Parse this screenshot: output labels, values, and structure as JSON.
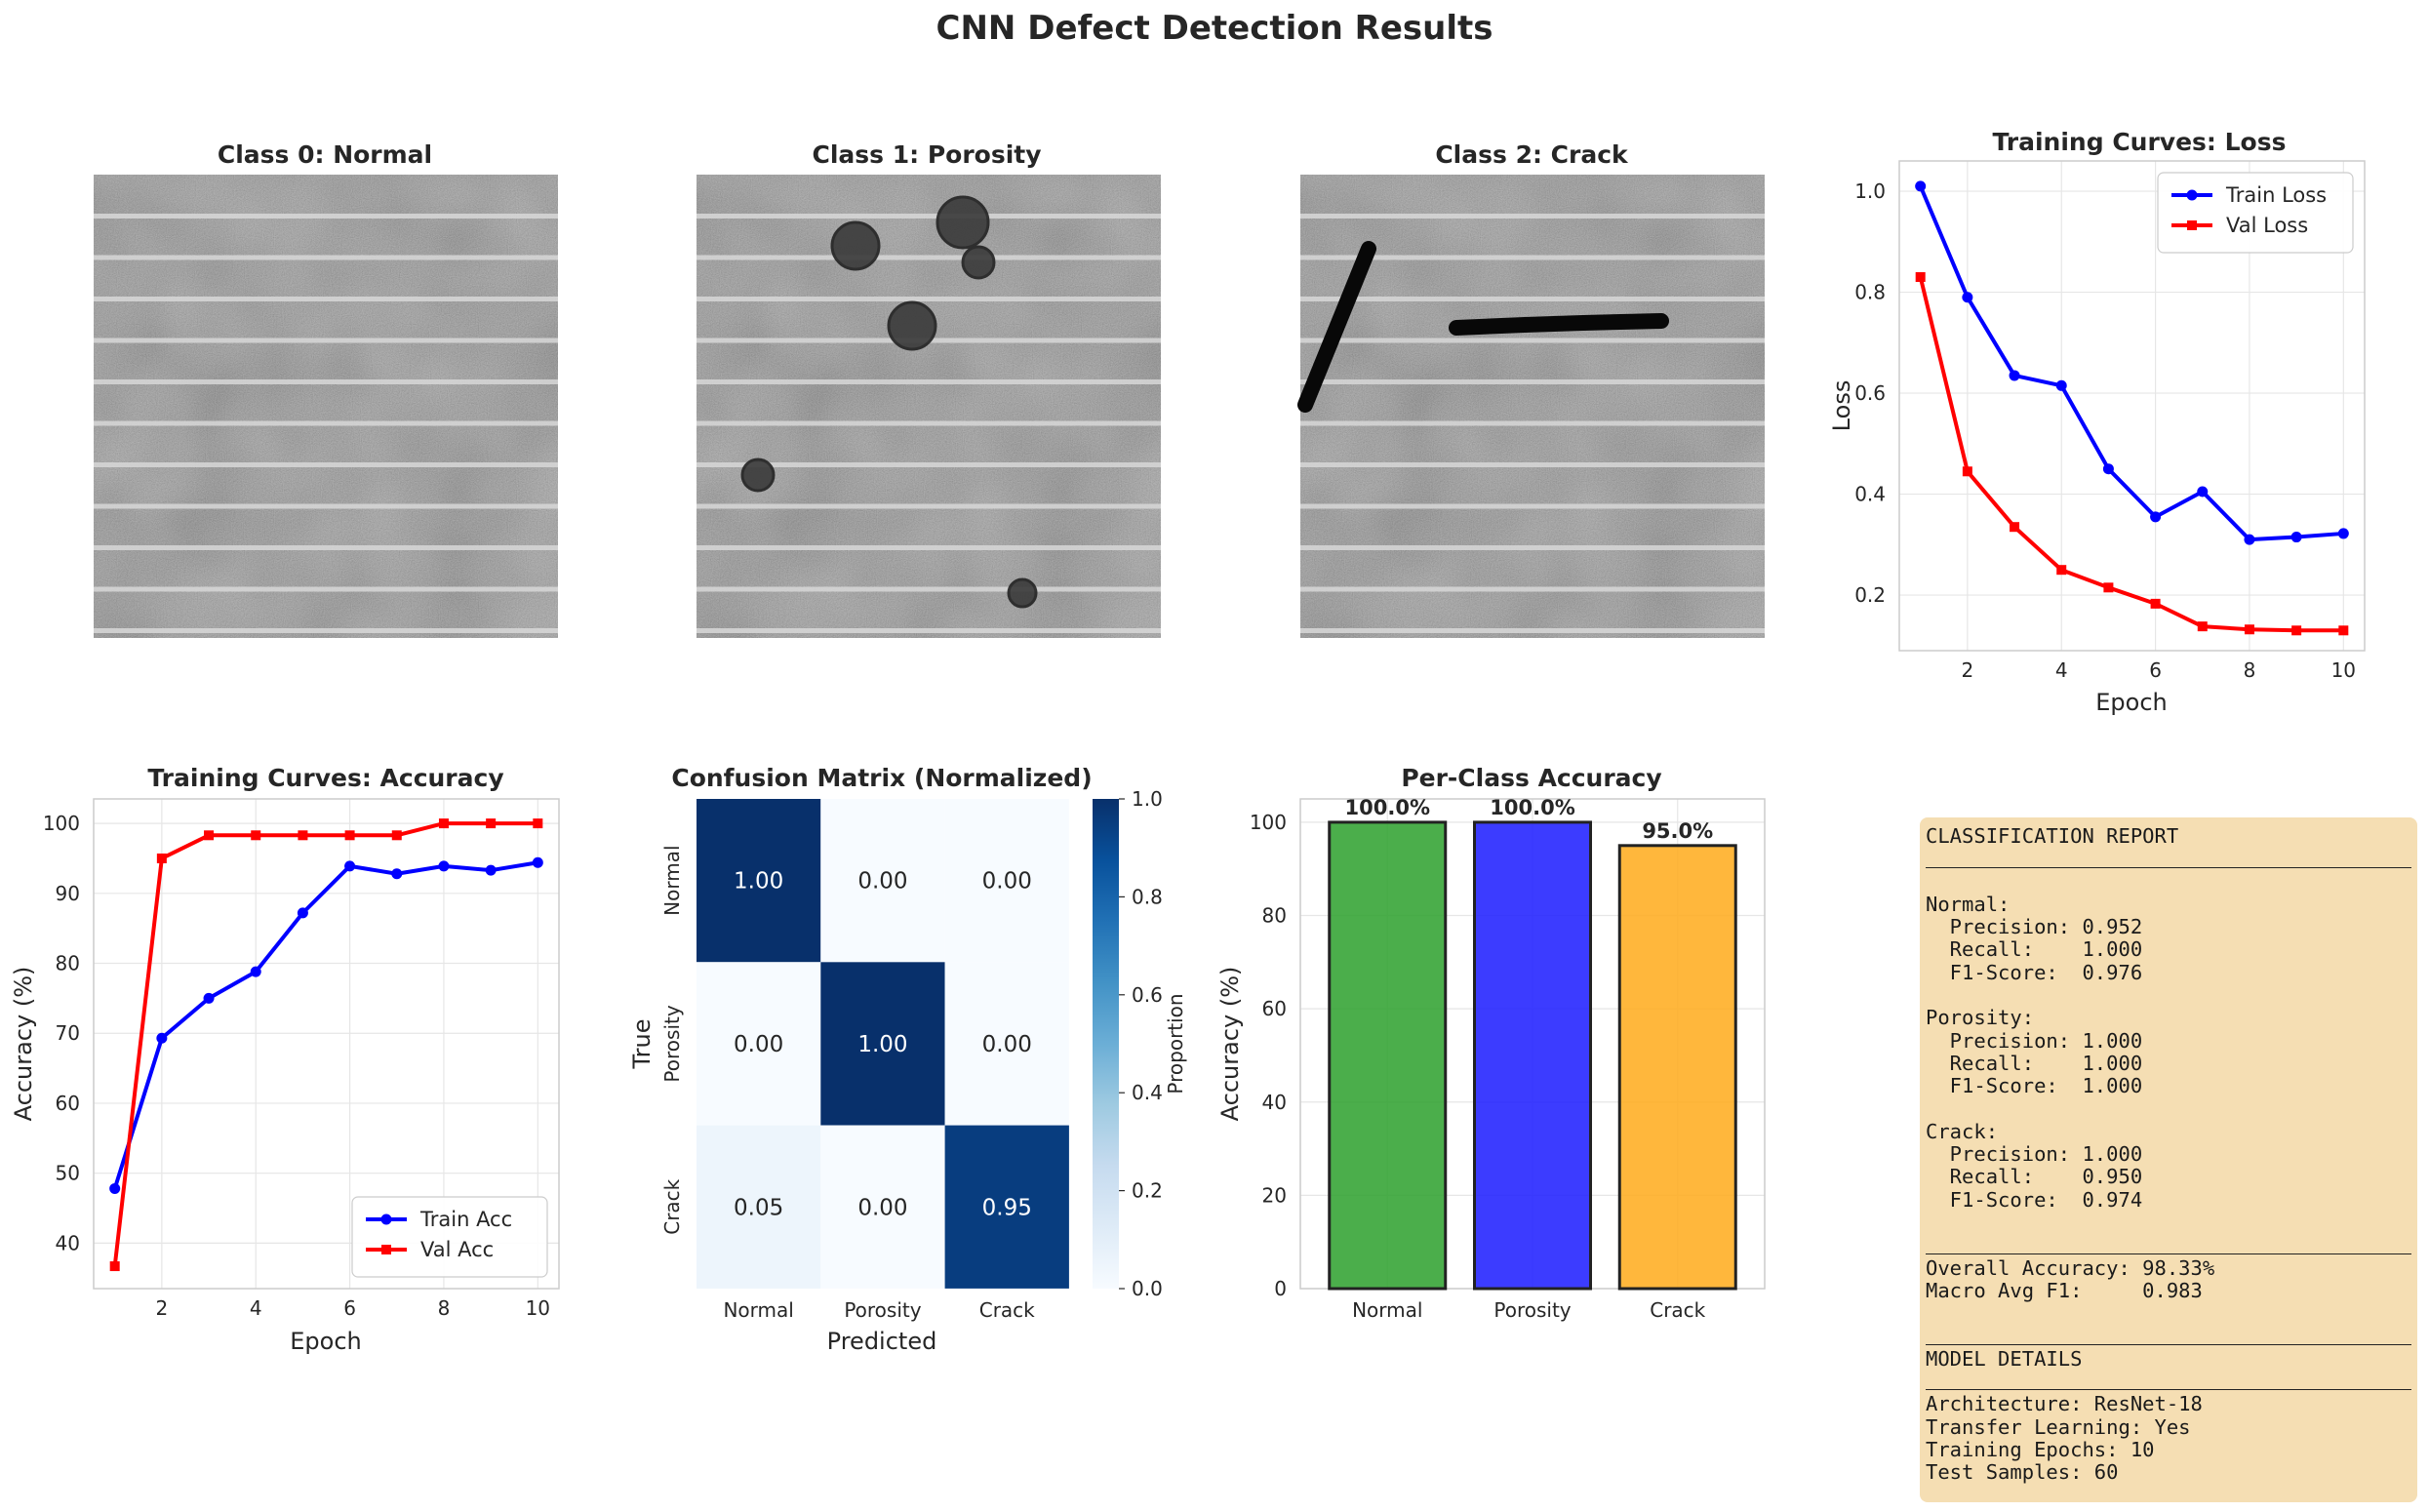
{
  "figure_title": "CNN Defect Detection Results",
  "sample_images": [
    {
      "title": "Class 0: Normal"
    },
    {
      "title": "Class 1: Porosity"
    },
    {
      "title": "Class 2: Crack"
    }
  ],
  "chart_data": [
    {
      "type": "line",
      "title": "Training Curves: Loss",
      "xlabel": "Epoch",
      "ylabel": "Loss",
      "x": [
        1,
        2,
        3,
        4,
        5,
        6,
        7,
        8,
        9,
        10
      ],
      "xticks": [
        2,
        4,
        6,
        8,
        10
      ],
      "yticks": [
        0.2,
        0.4,
        0.6,
        0.8,
        1.0
      ],
      "ylim": [
        0.09,
        1.06
      ],
      "grid": true,
      "legend": "top-right",
      "series": [
        {
          "name": "Train Loss",
          "color": "#0000ff",
          "marker": "circle",
          "values": [
            1.01,
            0.79,
            0.635,
            0.615,
            0.45,
            0.355,
            0.405,
            0.31,
            0.315,
            0.322
          ]
        },
        {
          "name": "Val Loss",
          "color": "#ff0000",
          "marker": "square",
          "values": [
            0.83,
            0.445,
            0.335,
            0.25,
            0.215,
            0.183,
            0.138,
            0.132,
            0.13,
            0.13
          ]
        }
      ]
    },
    {
      "type": "line",
      "title": "Training Curves: Accuracy",
      "xlabel": "Epoch",
      "ylabel": "Accuracy (%)",
      "x": [
        1,
        2,
        3,
        4,
        5,
        6,
        7,
        8,
        9,
        10
      ],
      "xticks": [
        2,
        4,
        6,
        8,
        10
      ],
      "yticks": [
        40,
        50,
        60,
        70,
        80,
        90,
        100
      ],
      "ylim": [
        33.5,
        103.5
      ],
      "grid": true,
      "legend": "bottom-right",
      "series": [
        {
          "name": "Train Acc",
          "color": "#0000ff",
          "marker": "circle",
          "values": [
            47.8,
            69.3,
            75,
            78.8,
            87.2,
            93.9,
            92.8,
            93.9,
            93.3,
            94.4
          ]
        },
        {
          "name": "Val Acc",
          "color": "#ff0000",
          "marker": "square",
          "values": [
            36.7,
            95,
            98.3,
            98.3,
            98.3,
            98.3,
            98.3,
            100,
            100,
            100
          ]
        }
      ]
    },
    {
      "type": "heatmap",
      "title": "Confusion Matrix (Normalized)",
      "xlabel": "Predicted",
      "ylabel": "True",
      "x_categories": [
        "Normal",
        "Porosity",
        "Crack"
      ],
      "y_categories": [
        "Normal",
        "Porosity",
        "Crack"
      ],
      "values": [
        [
          1.0,
          0.0,
          0.0
        ],
        [
          0.0,
          1.0,
          0.0
        ],
        [
          0.05,
          0.0,
          0.95
        ]
      ],
      "value_labels": [
        [
          "1.00",
          "0.00",
          "0.00"
        ],
        [
          "0.00",
          "1.00",
          "0.00"
        ],
        [
          "0.05",
          "0.00",
          "0.95"
        ]
      ],
      "colorbar_label": "Proportion",
      "colorbar_ticks": [
        0.0,
        0.2,
        0.4,
        0.6,
        0.8,
        1.0
      ],
      "colorbar_tick_labels": [
        "0.0",
        "0.2",
        "0.4",
        "0.6",
        "0.8",
        "1.0"
      ],
      "colormap": "Blues"
    },
    {
      "type": "bar",
      "title": "Per-Class Accuracy",
      "ylabel": "Accuracy (%)",
      "categories": [
        "Normal",
        "Porosity",
        "Crack"
      ],
      "values": [
        100.0,
        100.0,
        95.0
      ],
      "value_labels": [
        "100.0%",
        "100.0%",
        "95.0%"
      ],
      "colors": [
        "#2ca02c",
        "#1a1aff",
        "#ffaa1a"
      ],
      "yticks": [
        0,
        20,
        40,
        60,
        80,
        100
      ],
      "ylim": [
        0,
        105
      ],
      "grid": true
    }
  ],
  "report": {
    "lines": [
      {
        "t": "CLASSIFICATION REPORT"
      },
      {
        "rule": true
      },
      {
        "t": ""
      },
      {
        "t": "Normal:"
      },
      {
        "t": "  Precision: 0.952"
      },
      {
        "t": "  Recall:    1.000"
      },
      {
        "t": "  F1-Score:  0.976"
      },
      {
        "t": ""
      },
      {
        "t": "Porosity:"
      },
      {
        "t": "  Precision: 1.000"
      },
      {
        "t": "  Recall:    1.000"
      },
      {
        "t": "  F1-Score:  1.000"
      },
      {
        "t": ""
      },
      {
        "t": "Crack:"
      },
      {
        "t": "  Precision: 1.000"
      },
      {
        "t": "  Recall:    0.950"
      },
      {
        "t": "  F1-Score:  0.974"
      },
      {
        "t": ""
      },
      {
        "rule": true
      },
      {
        "t": "Overall Accuracy: 98.33%"
      },
      {
        "t": "Macro Avg F1:     0.983"
      },
      {
        "t": ""
      },
      {
        "rule": true
      },
      {
        "t": "MODEL DETAILS"
      },
      {
        "rule": true
      },
      {
        "t": "Architecture: ResNet-18"
      },
      {
        "t": "Transfer Learning: Yes"
      },
      {
        "t": "Training Epochs: 10"
      },
      {
        "t": "Test Samples: 60"
      }
    ]
  }
}
